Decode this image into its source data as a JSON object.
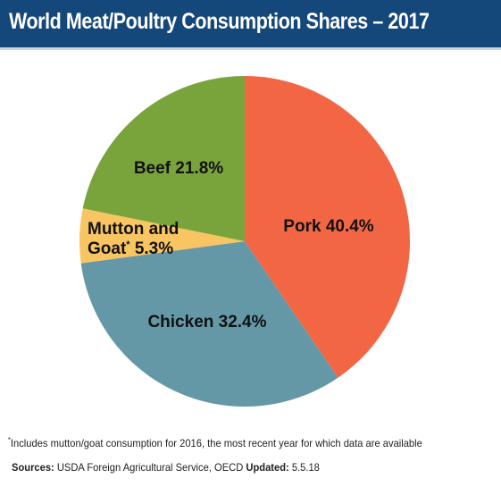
{
  "header": {
    "title": "World Meat/Poultry Consumption Shares – 2017"
  },
  "chart_data": {
    "type": "pie",
    "title": "World Meat/Poultry Consumption Shares – 2017",
    "slices": [
      {
        "name": "Pork",
        "value": 40.4,
        "display": "40.4%",
        "color": "#f26644"
      },
      {
        "name": "Chicken",
        "value": 32.4,
        "display": "32.4%",
        "color": "#6598a7"
      },
      {
        "name": "Mutton and Goat",
        "line1": "Mutton and",
        "line2": "Goat",
        "marker": "*",
        "value": 5.3,
        "display": "5.3%",
        "color": "#f8c562"
      },
      {
        "name": "Beef",
        "value": 21.8,
        "display": "21.8%",
        "color": "#79a43b"
      }
    ],
    "start": "12 o'clock",
    "direction": "clockwise"
  },
  "footer": {
    "footnote_marker": "*",
    "footnote_text": "Includes mutton/goat consumption for 2016, the most recent year for which data are available",
    "sources_label": "Sources:",
    "sources_text": "USDA Foreign Agricultural Service, OECD",
    "updated_label": "Updated:",
    "updated_text": "5.5.18"
  }
}
